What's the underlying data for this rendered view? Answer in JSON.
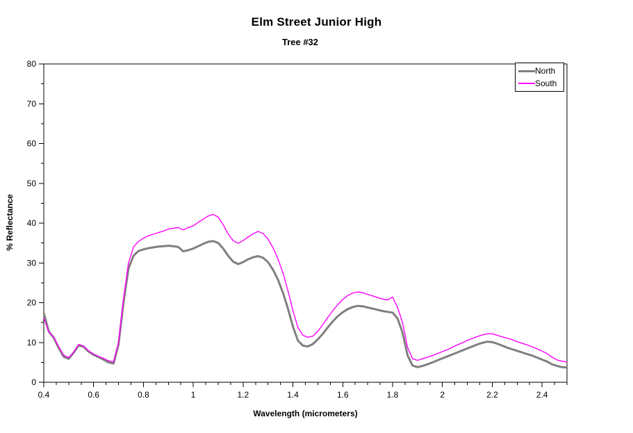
{
  "chart_data": {
    "type": "line",
    "title": "Elm Street Junior High",
    "subtitle": "Tree #32",
    "xlabel": "Wavelength (micrometers)",
    "ylabel": "% Reflectance",
    "xlim": [
      0.4,
      2.5
    ],
    "ylim": [
      0,
      80
    ],
    "grid": false,
    "legend_position": "top-right",
    "x_major_ticks": [
      0.4,
      0.6,
      0.8,
      1,
      1.2,
      1.4,
      1.6,
      1.8,
      2,
      2.2,
      2.4
    ],
    "x_major_tick_labels": [
      "0.4",
      "0.6",
      "0.8",
      "1",
      "1.2",
      "1.4",
      "1.6",
      "1.8",
      "2",
      "2.2",
      "2.4"
    ],
    "x_minor_tick_step": 0.05,
    "y_major_ticks": [
      0,
      10,
      20,
      30,
      40,
      50,
      60,
      70,
      80
    ],
    "y_major_tick_labels": [
      "0",
      "10",
      "20",
      "30",
      "40",
      "50",
      "60",
      "70",
      "80"
    ],
    "y_minor_tick_step": 5,
    "x": [
      0.4,
      0.42,
      0.44,
      0.46,
      0.48,
      0.5,
      0.52,
      0.54,
      0.56,
      0.58,
      0.6,
      0.62,
      0.64,
      0.66,
      0.68,
      0.7,
      0.72,
      0.74,
      0.76,
      0.78,
      0.8,
      0.82,
      0.84,
      0.86,
      0.88,
      0.9,
      0.92,
      0.94,
      0.96,
      0.98,
      1.0,
      1.02,
      1.04,
      1.06,
      1.08,
      1.1,
      1.12,
      1.14,
      1.16,
      1.18,
      1.2,
      1.22,
      1.24,
      1.26,
      1.28,
      1.3,
      1.32,
      1.34,
      1.36,
      1.38,
      1.4,
      1.42,
      1.44,
      1.46,
      1.48,
      1.5,
      1.52,
      1.54,
      1.56,
      1.58,
      1.6,
      1.62,
      1.64,
      1.66,
      1.68,
      1.7,
      1.72,
      1.74,
      1.76,
      1.78,
      1.8,
      1.82,
      1.84,
      1.86,
      1.88,
      1.9,
      1.92,
      1.94,
      1.96,
      1.98,
      2.0,
      2.02,
      2.04,
      2.06,
      2.08,
      2.1,
      2.12,
      2.14,
      2.16,
      2.18,
      2.2,
      2.22,
      2.24,
      2.26,
      2.28,
      2.3,
      2.32,
      2.34,
      2.36,
      2.38,
      2.4,
      2.42,
      2.44,
      2.46,
      2.48,
      2.5
    ],
    "series": [
      {
        "name": "North",
        "color": "#7f7f7f",
        "line_width": 3,
        "values": [
          17.4,
          12.8,
          11.2,
          8.6,
          6.4,
          5.9,
          7.4,
          9.3,
          8.9,
          7.7,
          6.9,
          6.3,
          5.7,
          5.0,
          4.7,
          9.5,
          20.0,
          28.5,
          31.8,
          33.0,
          33.4,
          33.7,
          33.9,
          34.1,
          34.2,
          34.3,
          34.2,
          34.0,
          32.9,
          33.2,
          33.6,
          34.2,
          34.8,
          35.3,
          35.5,
          35.0,
          33.6,
          31.8,
          30.3,
          29.7,
          30.2,
          30.9,
          31.4,
          31.7,
          31.3,
          30.2,
          28.3,
          25.8,
          22.5,
          18.5,
          14.0,
          10.5,
          9.2,
          9.0,
          9.6,
          10.8,
          12.2,
          13.8,
          15.3,
          16.6,
          17.6,
          18.4,
          18.9,
          19.2,
          19.1,
          18.8,
          18.5,
          18.2,
          17.9,
          17.7,
          17.5,
          16.0,
          12.5,
          6.8,
          4.2,
          3.8,
          4.1,
          4.5,
          5.0,
          5.5,
          6.0,
          6.5,
          7.0,
          7.5,
          8.0,
          8.5,
          9.0,
          9.5,
          9.9,
          10.2,
          10.1,
          9.7,
          9.2,
          8.7,
          8.3,
          7.9,
          7.5,
          7.1,
          6.7,
          6.2,
          5.7,
          5.2,
          4.5,
          4.1,
          3.8,
          3.7
        ]
      },
      {
        "name": "South",
        "color": "#ff00ff",
        "line_width": 1.4,
        "values": [
          16.2,
          12.6,
          11.4,
          8.9,
          6.8,
          6.2,
          7.6,
          9.5,
          9.1,
          7.9,
          7.1,
          6.5,
          6.0,
          5.4,
          5.1,
          10.0,
          21.0,
          30.0,
          34.0,
          35.4,
          36.2,
          36.8,
          37.2,
          37.6,
          38.0,
          38.5,
          38.7,
          38.9,
          38.3,
          38.9,
          39.3,
          40.2,
          41.0,
          41.8,
          42.2,
          41.5,
          39.6,
          37.3,
          35.6,
          34.9,
          35.6,
          36.5,
          37.3,
          37.9,
          37.4,
          36.0,
          33.8,
          31.0,
          27.5,
          23.0,
          18.0,
          13.8,
          11.8,
          11.3,
          11.6,
          12.8,
          14.5,
          16.3,
          18.0,
          19.5,
          20.8,
          21.8,
          22.4,
          22.7,
          22.5,
          22.1,
          21.7,
          21.3,
          20.9,
          20.7,
          21.4,
          18.8,
          15.0,
          8.8,
          5.9,
          5.5,
          5.9,
          6.3,
          6.7,
          7.2,
          7.7,
          8.2,
          8.8,
          9.4,
          9.9,
          10.5,
          11.0,
          11.5,
          11.9,
          12.2,
          12.2,
          11.8,
          11.4,
          11.1,
          10.7,
          10.2,
          9.8,
          9.4,
          8.9,
          8.4,
          7.8,
          7.2,
          6.3,
          5.6,
          5.3,
          5.1
        ]
      }
    ]
  }
}
